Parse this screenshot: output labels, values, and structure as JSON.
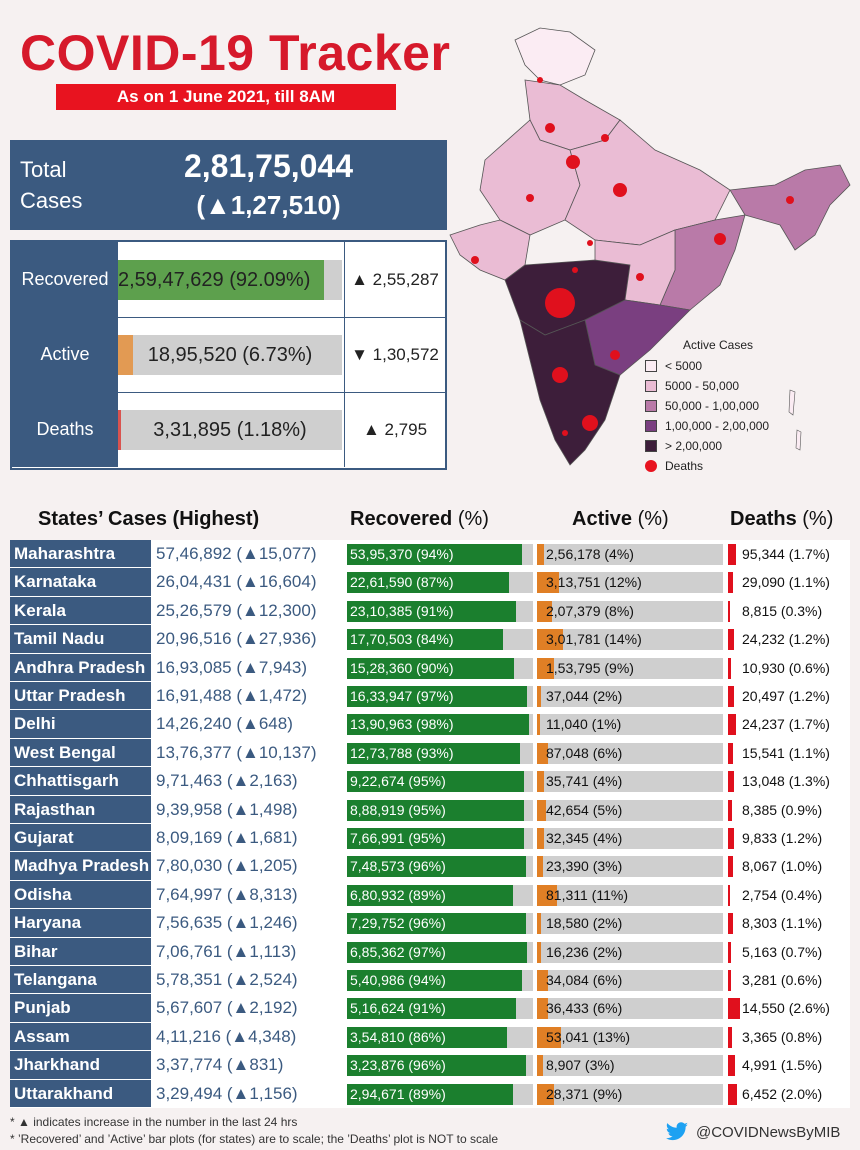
{
  "header": {
    "title": "COVID-19 Tracker",
    "subtitle": "As on 1 June 2021, till 8AM"
  },
  "total": {
    "label": "Total Cases",
    "value": "2,81,75,044",
    "delta": "(▲1,27,510)"
  },
  "summary": [
    {
      "label": "Recovered",
      "value": "2,59,47,629",
      "pct_text": "(92.09%)",
      "pct": 92.09,
      "delta": "▲ 2,55,287",
      "color": "#5da04d"
    },
    {
      "label": "Active",
      "value": "18,95,520",
      "pct_text": "(6.73%)",
      "pct": 6.73,
      "delta": "▼ 1,30,572",
      "color": "#e29a53"
    },
    {
      "label": "Deaths",
      "value": "3,31,895",
      "pct_text": "(1.18%)",
      "pct": 1.18,
      "delta": "▲ 2,795",
      "color": "#d9534f"
    }
  ],
  "legend": {
    "title": "Active Cases",
    "items": [
      {
        "label": "< 5000",
        "color": "#fbecf3"
      },
      {
        "label": "5000 - 50,000",
        "color": "#eabcd4"
      },
      {
        "label": "50,000 - 1,00,000",
        "color": "#b97aa8"
      },
      {
        "label": "1,00,000 - 2,00,000",
        "color": "#7a3f80"
      },
      {
        "label": "> 2,00,000",
        "color": "#3d1e3a"
      }
    ],
    "deaths_label": "Deaths"
  },
  "table_headers": {
    "states": "States’ Cases (Highest)",
    "recovered": "Recovered",
    "active": "Active",
    "deaths": "Deaths",
    "pct": "(%)"
  },
  "chart_data": {
    "type": "bar",
    "categories": [
      "Maharashtra",
      "Karnataka",
      "Kerala",
      "Tamil Nadu",
      "Andhra Pradesh",
      "Uttar Pradesh",
      "Delhi",
      "West Bengal",
      "Chhattisgarh",
      "Rajasthan",
      "Gujarat",
      "Madhya Pradesh",
      "Odisha",
      "Haryana",
      "Bihar",
      "Telangana",
      "Punjab",
      "Assam",
      "Jharkhand",
      "Uttarakhand"
    ],
    "rows": [
      {
        "state": "Maharashtra",
        "total": "57,46,892 (▲15,077)",
        "recovered": "53,95,370 (94%)",
        "rec_pct": 94,
        "active": "2,56,178 (4%)",
        "act_pct": 4,
        "deaths": "95,344 (1.7%)",
        "dth_pct": 1.7
      },
      {
        "state": "Karnataka",
        "total": "26,04,431 (▲16,604)",
        "recovered": "22,61,590 (87%)",
        "rec_pct": 87,
        "active": "3,13,751 (12%)",
        "act_pct": 12,
        "deaths": "29,090 (1.1%)",
        "dth_pct": 1.1
      },
      {
        "state": "Kerala",
        "total": "25,26,579 (▲12,300)",
        "recovered": "23,10,385 (91%)",
        "rec_pct": 91,
        "active": "2,07,379 (8%)",
        "act_pct": 8,
        "deaths": "8,815 (0.3%)",
        "dth_pct": 0.3
      },
      {
        "state": "Tamil Nadu",
        "total": "20,96,516 (▲27,936)",
        "recovered": "17,70,503 (84%)",
        "rec_pct": 84,
        "active": "3,01,781 (14%)",
        "act_pct": 14,
        "deaths": "24,232 (1.2%)",
        "dth_pct": 1.2
      },
      {
        "state": "Andhra Pradesh",
        "total": "16,93,085 (▲7,943)",
        "recovered": "15,28,360 (90%)",
        "rec_pct": 90,
        "active": "1,53,795 (9%)",
        "act_pct": 9,
        "deaths": "10,930 (0.6%)",
        "dth_pct": 0.6
      },
      {
        "state": "Uttar Pradesh",
        "total": "16,91,488 (▲1,472)",
        "recovered": "16,33,947 (97%)",
        "rec_pct": 97,
        "active": "37,044 (2%)",
        "act_pct": 2,
        "deaths": "20,497 (1.2%)",
        "dth_pct": 1.2
      },
      {
        "state": "Delhi",
        "total": "14,26,240 (▲648)",
        "recovered": "13,90,963 (98%)",
        "rec_pct": 98,
        "active": "11,040 (1%)",
        "act_pct": 1,
        "deaths": "24,237 (1.7%)",
        "dth_pct": 1.7
      },
      {
        "state": "West Bengal",
        "total": "13,76,377 (▲10,137)",
        "recovered": "12,73,788 (93%)",
        "rec_pct": 93,
        "active": "87,048 (6%)",
        "act_pct": 6,
        "deaths": "15,541 (1.1%)",
        "dth_pct": 1.1
      },
      {
        "state": "Chhattisgarh",
        "total": "9,71,463 (▲2,163)",
        "recovered": "9,22,674 (95%)",
        "rec_pct": 95,
        "active": "35,741 (4%)",
        "act_pct": 4,
        "deaths": "13,048 (1.3%)",
        "dth_pct": 1.3
      },
      {
        "state": "Rajasthan",
        "total": "9,39,958 (▲1,498)",
        "recovered": "8,88,919 (95%)",
        "rec_pct": 95,
        "active": "42,654 (5%)",
        "act_pct": 5,
        "deaths": "8,385 (0.9%)",
        "dth_pct": 0.9
      },
      {
        "state": "Gujarat",
        "total": "8,09,169 (▲1,681)",
        "recovered": "7,66,991 (95%)",
        "rec_pct": 95,
        "active": "32,345 (4%)",
        "act_pct": 4,
        "deaths": "9,833 (1.2%)",
        "dth_pct": 1.2
      },
      {
        "state": "Madhya Pradesh",
        "total": "7,80,030 (▲1,205)",
        "recovered": "7,48,573 (96%)",
        "rec_pct": 96,
        "active": "23,390 (3%)",
        "act_pct": 3,
        "deaths": "8,067 (1.0%)",
        "dth_pct": 1.0
      },
      {
        "state": "Odisha",
        "total": "7,64,997 (▲8,313)",
        "recovered": "6,80,932 (89%)",
        "rec_pct": 89,
        "active": "81,311 (11%)",
        "act_pct": 11,
        "deaths": "2,754 (0.4%)",
        "dth_pct": 0.4
      },
      {
        "state": "Haryana",
        "total": "7,56,635 (▲1,246)",
        "recovered": "7,29,752 (96%)",
        "rec_pct": 96,
        "active": "18,580 (2%)",
        "act_pct": 2,
        "deaths": "8,303 (1.1%)",
        "dth_pct": 1.1
      },
      {
        "state": "Bihar",
        "total": "7,06,761 (▲1,113)",
        "recovered": "6,85,362 (97%)",
        "rec_pct": 97,
        "active": "16,236 (2%)",
        "act_pct": 2,
        "deaths": "5,163 (0.7%)",
        "dth_pct": 0.7
      },
      {
        "state": "Telangana",
        "total": "5,78,351 (▲2,524)",
        "recovered": "5,40,986 (94%)",
        "rec_pct": 94,
        "active": "34,084 (6%)",
        "act_pct": 6,
        "deaths": "3,281 (0.6%)",
        "dth_pct": 0.6
      },
      {
        "state": "Punjab",
        "total": "5,67,607 (▲2,192)",
        "recovered": "5,16,624 (91%)",
        "rec_pct": 91,
        "active": "36,433 (6%)",
        "act_pct": 6,
        "deaths": "14,550 (2.6%)",
        "dth_pct": 2.6
      },
      {
        "state": "Assam",
        "total": "4,11,216 (▲4,348)",
        "recovered": "3,54,810 (86%)",
        "rec_pct": 86,
        "active": "53,041 (13%)",
        "act_pct": 13,
        "deaths": "3,365 (0.8%)",
        "dth_pct": 0.8
      },
      {
        "state": "Jharkhand",
        "total": "3,37,774 (▲831)",
        "recovered": "3,23,876 (96%)",
        "rec_pct": 96,
        "active": "8,907 (3%)",
        "act_pct": 3,
        "deaths": "4,991 (1.5%)",
        "dth_pct": 1.5
      },
      {
        "state": "Uttarakhand",
        "total": "3,29,494 (▲1,156)",
        "recovered": "2,94,671 (89%)",
        "rec_pct": 89,
        "active": "28,371 (9%)",
        "act_pct": 9,
        "deaths": "6,452 (2.0%)",
        "dth_pct": 2.0
      }
    ]
  },
  "footnotes": [
    "* ▲ indicates increase in the number in the last 24 hrs",
    "* ’Recovered’ and ’Active’ bar plots (for states) are to scale; the ’Deaths’ plot is NOT to scale"
  ],
  "handle": "@COVIDNewsByMIB"
}
